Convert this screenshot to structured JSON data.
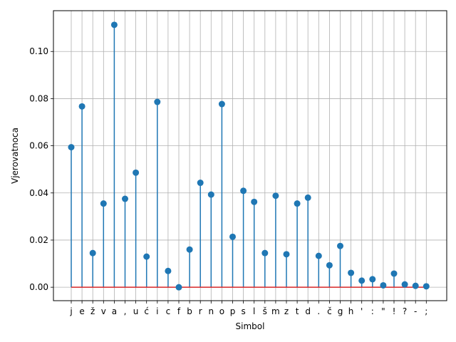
{
  "chart_data": {
    "type": "stem",
    "title": "",
    "xlabel": "Simbol",
    "ylabel": "Vjerovatnoca",
    "ylim": [
      -0.0057,
      0.1173
    ],
    "yticks": [
      0.0,
      0.02,
      0.04,
      0.06,
      0.08,
      0.1
    ],
    "ytick_labels": [
      "0.00",
      "0.02",
      "0.04",
      "0.06",
      "0.08",
      "0.10"
    ],
    "grid": true,
    "baseline": 0,
    "colors": {
      "stem": "#1f77b4",
      "marker": "#1f77b4",
      "baseline": "#d62728",
      "grid": "#b0b0b0"
    },
    "categories": [
      "j",
      "e",
      "ž",
      "v",
      "a",
      ",",
      "u",
      "ć",
      "i",
      "c",
      "f",
      "b",
      "r",
      "n",
      "o",
      "p",
      "s",
      "l",
      "š",
      "m",
      "z",
      "t",
      "d",
      ".",
      "č",
      "g",
      "h",
      "'",
      ":",
      "\"",
      "!",
      "?",
      "-",
      ";"
    ],
    "values": [
      0.0594,
      0.0767,
      0.0145,
      0.0355,
      0.1113,
      0.0375,
      0.0486,
      0.013,
      0.0786,
      0.0069,
      0.0,
      0.016,
      0.0443,
      0.0393,
      0.0777,
      0.0214,
      0.0409,
      0.0362,
      0.0145,
      0.0388,
      0.014,
      0.0355,
      0.038,
      0.0133,
      0.0093,
      0.0175,
      0.0061,
      0.0028,
      0.0034,
      0.0008,
      0.0058,
      0.0012,
      0.0006,
      0.0004
    ]
  }
}
